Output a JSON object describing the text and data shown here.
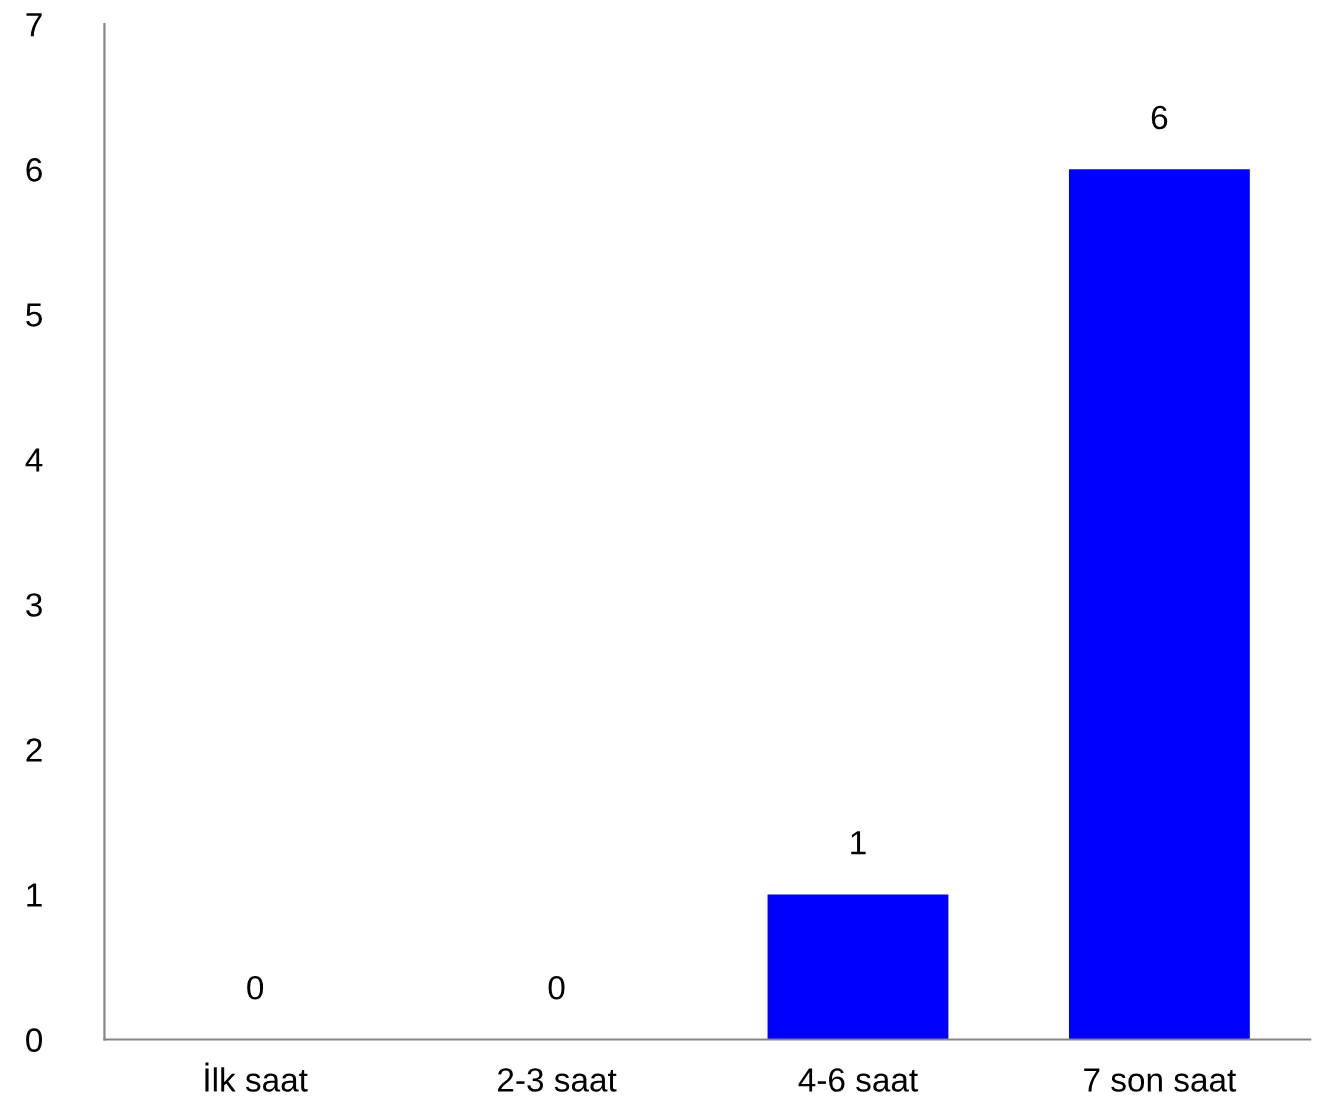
{
  "chart_data": {
    "type": "bar",
    "categories": [
      "İlk saat",
      "2-3 saat",
      "4-6 saat",
      "7 son saat"
    ],
    "values": [
      0,
      0,
      1,
      6
    ],
    "color": "#0000ff",
    "ylim": [
      0,
      7
    ],
    "yticks": [
      0,
      1,
      2,
      3,
      4,
      5,
      6,
      7
    ],
    "data_labels": true,
    "grid": false,
    "legend": false
  }
}
